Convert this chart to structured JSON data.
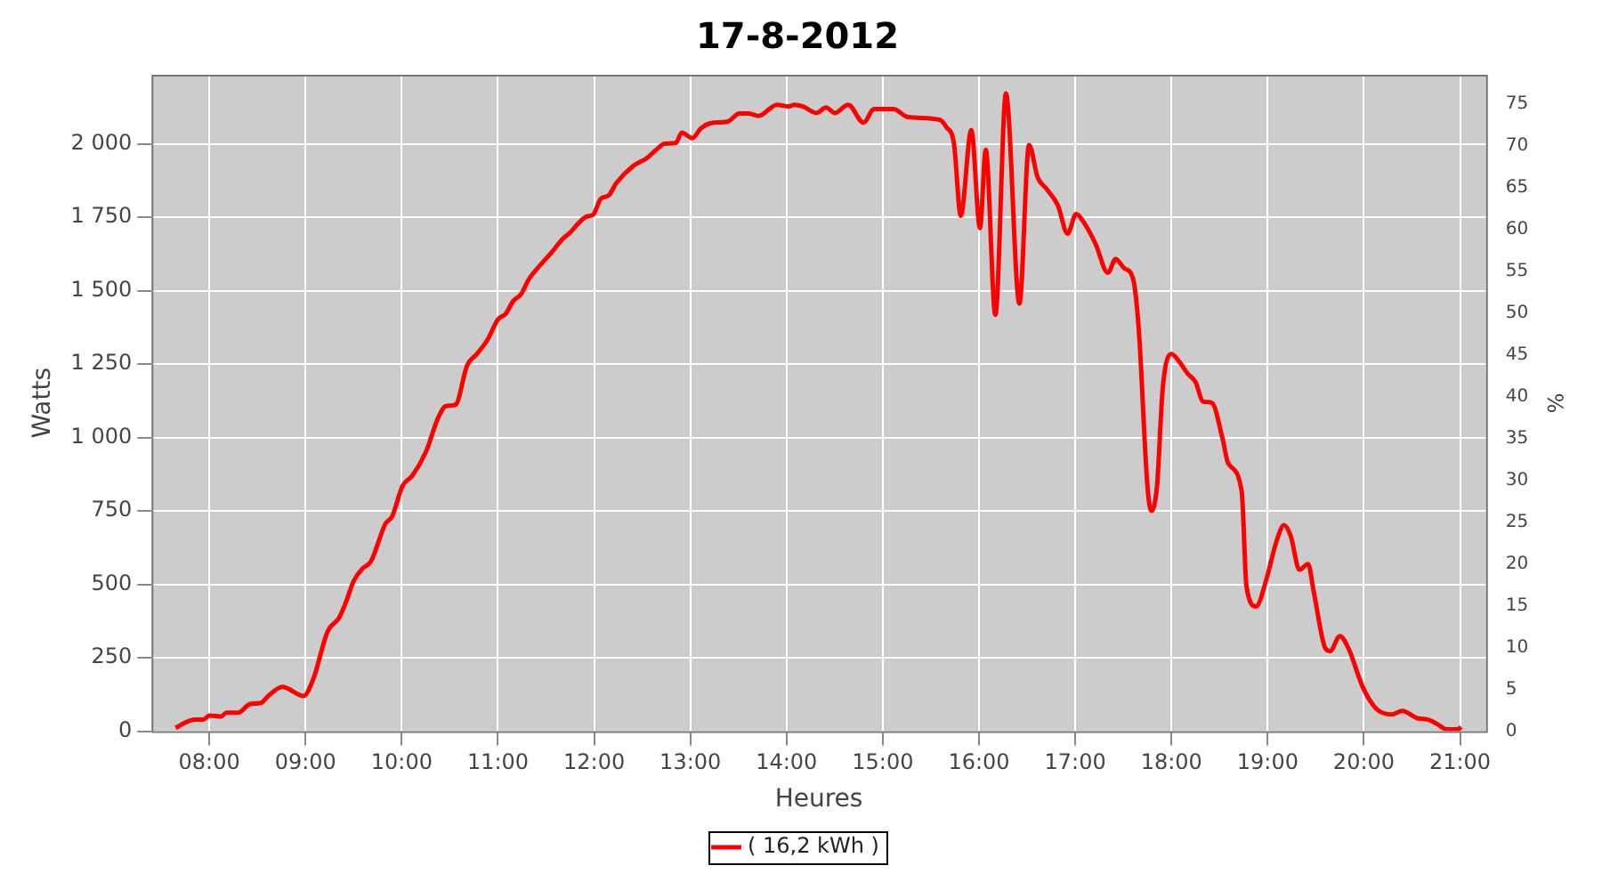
{
  "chart_data": {
    "type": "line",
    "title": "17-8-2012",
    "xlabel": "Heures",
    "ylabel": "Watts",
    "y2label": "%",
    "xlim": [
      7.4,
      21.27
    ],
    "xticks": [
      {
        "value": 8,
        "label": "08:00"
      },
      {
        "value": 9,
        "label": "09:00"
      },
      {
        "value": 10,
        "label": "10:00"
      },
      {
        "value": 11,
        "label": "11:00"
      },
      {
        "value": 12,
        "label": "12:00"
      },
      {
        "value": 13,
        "label": "13:00"
      },
      {
        "value": 14,
        "label": "14:00"
      },
      {
        "value": 15,
        "label": "15:00"
      },
      {
        "value": 16,
        "label": "16:00"
      },
      {
        "value": 17,
        "label": "17:00"
      },
      {
        "value": 18,
        "label": "18:00"
      },
      {
        "value": 19,
        "label": "19:00"
      },
      {
        "value": 20,
        "label": "20:00"
      },
      {
        "value": 21,
        "label": "21:00"
      }
    ],
    "ylim": [
      0,
      2235
    ],
    "yticks": [
      0,
      250,
      500,
      750,
      {
        "value": 1000,
        "label": "1 000"
      },
      {
        "value": 1250,
        "label": "1 250"
      },
      {
        "value": 1500,
        "label": "1 500"
      },
      {
        "value": 1750,
        "label": "1 750"
      },
      {
        "value": 2000,
        "label": "2 000"
      }
    ],
    "y2lim": [
      0,
      78.5
    ],
    "y2ticks": [
      0,
      5,
      10,
      15,
      20,
      25,
      30,
      35,
      40,
      45,
      50,
      55,
      60,
      65,
      70,
      75
    ],
    "grid": true,
    "legend": "bottom",
    "marker": "none",
    "line_style": "solid",
    "x": [
      7.65,
      7.76,
      7.85,
      7.94,
      8.0,
      8.12,
      8.18,
      8.3,
      8.42,
      8.54,
      8.6,
      8.76,
      8.98,
      9.08,
      9.23,
      9.35,
      9.42,
      9.5,
      9.59,
      9.68,
      9.83,
      9.9,
      10.01,
      10.11,
      10.25,
      10.38,
      10.46,
      10.56,
      10.68,
      10.78,
      10.89,
      11.0,
      11.08,
      11.16,
      11.24,
      11.32,
      11.41,
      11.56,
      11.67,
      11.75,
      11.83,
      11.92,
      11.99,
      12.07,
      12.15,
      12.23,
      12.4,
      12.55,
      12.66,
      12.73,
      12.85,
      12.91,
      13.02,
      13.11,
      13.21,
      13.39,
      13.51,
      13.6,
      13.71,
      13.9,
      14.02,
      14.08,
      14.17,
      14.31,
      14.41,
      14.5,
      14.64,
      14.8,
      14.91,
      15.11,
      15.26,
      15.59,
      15.66,
      15.74,
      15.81,
      15.92,
      16.01,
      16.07,
      16.17,
      16.28,
      16.42,
      16.52,
      16.61,
      16.7,
      16.82,
      16.92,
      17.01,
      17.09,
      17.21,
      17.34,
      17.42,
      17.51,
      17.6,
      17.66,
      17.75,
      17.79,
      17.85,
      17.91,
      18.0,
      18.08,
      18.17,
      18.25,
      18.33,
      18.42,
      18.53,
      18.59,
      18.73,
      18.78,
      18.88,
      18.99,
      19.09,
      19.17,
      19.24,
      19.33,
      19.42,
      19.48,
      19.6,
      19.65,
      19.75,
      19.84,
      19.99,
      20.13,
      20.29,
      20.4,
      20.56,
      20.66,
      20.76,
      20.86,
      20.98,
      21.01
    ],
    "series": [
      {
        "name": "( 16,2 kWh )",
        "color": "#ff0000",
        "values": [
          11,
          31,
          40,
          40,
          53,
          50,
          63,
          63,
          92,
          97,
          116,
          151,
          120,
          177,
          340,
          387,
          439,
          511,
          553,
          578,
          706,
          731,
          836,
          870,
          950,
          1068,
          1107,
          1112,
          1246,
          1284,
          1332,
          1402,
          1421,
          1465,
          1488,
          1538,
          1576,
          1631,
          1675,
          1698,
          1727,
          1752,
          1759,
          1813,
          1824,
          1866,
          1923,
          1952,
          1984,
          2000,
          2003,
          2038,
          2019,
          2053,
          2070,
          2076,
          2103,
          2103,
          2095,
          2133,
          2127,
          2133,
          2127,
          2105,
          2124,
          2105,
          2133,
          2072,
          2118,
          2118,
          2091,
          2082,
          2057,
          2000,
          1755,
          2047,
          1713,
          1980,
          1418,
          2171,
          1456,
          1996,
          1885,
          1847,
          1790,
          1694,
          1761,
          1732,
          1660,
          1561,
          1608,
          1576,
          1542,
          1370,
          836,
          750,
          836,
          1170,
          1284,
          1259,
          1217,
          1189,
          1122,
          1118,
          998,
          912,
          817,
          492,
          425,
          521,
          645,
          702,
          664,
          550,
          569,
          473,
          282,
          273,
          324,
          282,
          149,
          76,
          57,
          69,
          44,
          40,
          25,
          6,
          6,
          15
        ]
      }
    ]
  }
}
